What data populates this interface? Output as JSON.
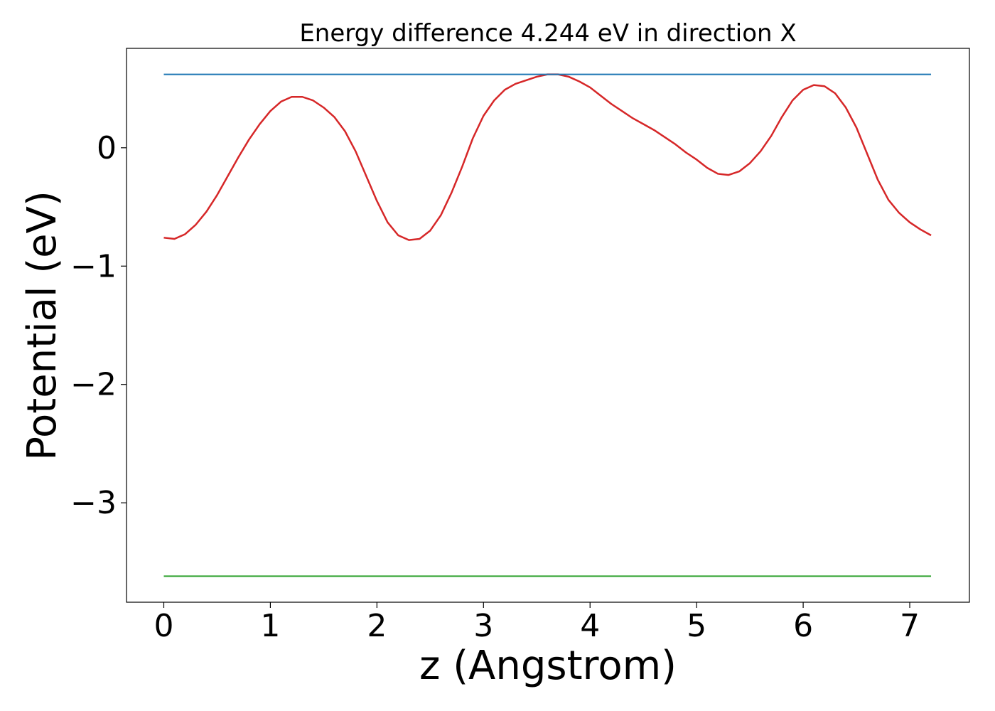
{
  "chart_data": {
    "type": "line",
    "title": "Energy difference 4.244 eV in direction X",
    "xlabel": "z (Angstrom)",
    "ylabel": "Potential (eV)",
    "xlim": [
      -0.35,
      7.56
    ],
    "ylim": [
      -3.84,
      0.84
    ],
    "x_ticks": [
      0,
      1,
      2,
      3,
      4,
      5,
      6,
      7
    ],
    "x_tick_labels": [
      "0",
      "1",
      "2",
      "3",
      "4",
      "5",
      "6",
      "7"
    ],
    "y_ticks": [
      0,
      -1,
      -2,
      -3
    ],
    "y_tick_labels": [
      "0",
      "−1",
      "−2",
      "−3"
    ],
    "grid": false,
    "series": [
      {
        "color": "#d62728",
        "x": [
          0.0,
          0.1,
          0.2,
          0.3,
          0.4,
          0.5,
          0.6,
          0.7,
          0.8,
          0.9,
          1.0,
          1.1,
          1.2,
          1.3,
          1.4,
          1.5,
          1.6,
          1.7,
          1.8,
          1.9,
          2.0,
          2.1,
          2.2,
          2.3,
          2.4,
          2.5,
          2.6,
          2.7,
          2.8,
          2.9,
          3.0,
          3.1,
          3.2,
          3.3,
          3.4,
          3.5,
          3.6,
          3.7,
          3.8,
          3.9,
          4.0,
          4.1,
          4.2,
          4.3,
          4.4,
          4.5,
          4.6,
          4.7,
          4.8,
          4.9,
          5.0,
          5.1,
          5.2,
          5.3,
          5.4,
          5.5,
          5.6,
          5.7,
          5.8,
          5.9,
          6.0,
          6.1,
          6.2,
          6.3,
          6.4,
          6.5,
          6.6,
          6.7,
          6.8,
          6.9,
          7.0,
          7.1,
          7.2
        ],
        "y": [
          -0.76,
          -0.77,
          -0.73,
          -0.65,
          -0.54,
          -0.4,
          -0.24,
          -0.08,
          0.07,
          0.2,
          0.31,
          0.39,
          0.43,
          0.43,
          0.4,
          0.34,
          0.26,
          0.14,
          -0.03,
          -0.24,
          -0.45,
          -0.63,
          -0.74,
          -0.78,
          -0.77,
          -0.7,
          -0.57,
          -0.38,
          -0.16,
          0.08,
          0.27,
          0.4,
          0.49,
          0.54,
          0.57,
          0.6,
          0.62,
          0.62,
          0.6,
          0.56,
          0.51,
          0.44,
          0.37,
          0.31,
          0.25,
          0.2,
          0.15,
          0.09,
          0.03,
          -0.04,
          -0.1,
          -0.17,
          -0.22,
          -0.23,
          -0.2,
          -0.13,
          -0.03,
          0.1,
          0.26,
          0.4,
          0.49,
          0.53,
          0.52,
          0.46,
          0.34,
          0.17,
          -0.05,
          -0.27,
          -0.44,
          -0.55,
          -0.63,
          -0.69,
          -0.74
        ]
      },
      {
        "color": "#1f77b4",
        "x": [
          0.0,
          7.2
        ],
        "y": [
          0.62,
          0.62
        ]
      },
      {
        "color": "#2ca02c",
        "x": [
          0.0,
          7.2
        ],
        "y": [
          -3.62,
          -3.62
        ]
      }
    ]
  }
}
